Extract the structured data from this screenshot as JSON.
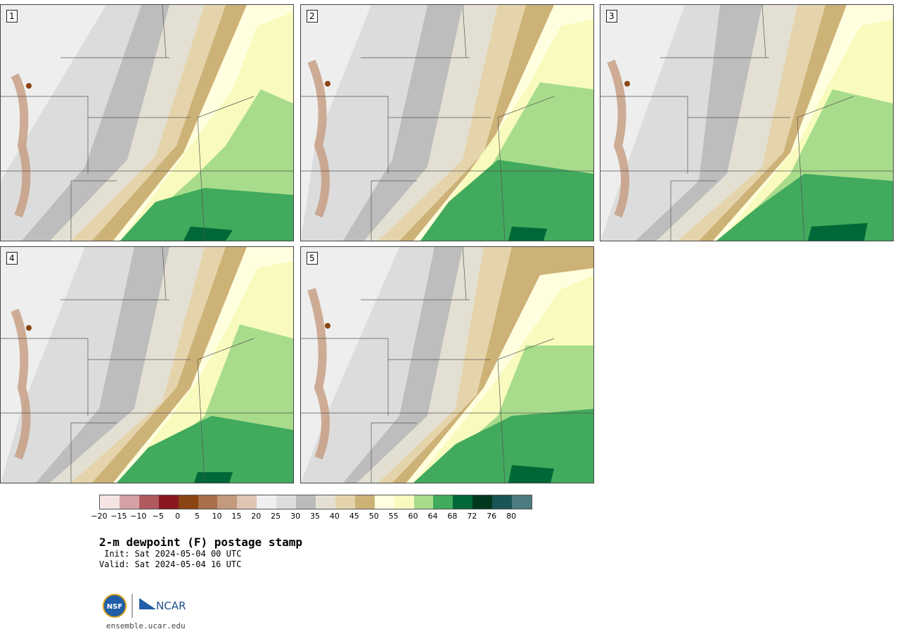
{
  "panels": [
    {
      "label": "1"
    },
    {
      "label": "2"
    },
    {
      "label": "3"
    },
    {
      "label": "4"
    },
    {
      "label": "5"
    }
  ],
  "colorbar": {
    "levels": [
      "-20",
      "-15",
      "-10",
      "-5",
      "0",
      "5",
      "10",
      "15",
      "20",
      "25",
      "30",
      "35",
      "40",
      "45",
      "50",
      "55",
      "60",
      "64",
      "68",
      "72",
      "76",
      "80"
    ],
    "colors": [
      "#f4e4e4",
      "#d6a1a6",
      "#b05a60",
      "#8a1820",
      "#8b4513",
      "#a8704a",
      "#c49a7e",
      "#e0c5b5",
      "#f0f0f0",
      "#dddddd",
      "#bbbbbb",
      "#e3e0d3",
      "#e5d4ab",
      "#cdb277",
      "#ffffe0",
      "#f8fbbd",
      "#a8dc8c",
      "#41aa5c",
      "#006837",
      "#00381f",
      "#1a5555",
      "#4d7c80"
    ]
  },
  "title": "2-m dewpoint (F) postage stamp",
  "init": " Init: Sat 2024-05-04 00 UTC",
  "valid": "Valid: Sat 2024-05-04 16 UTC",
  "logos": {
    "left": "NSF",
    "right": "NCAR"
  },
  "footer": "ensemble.ucar.edu"
}
